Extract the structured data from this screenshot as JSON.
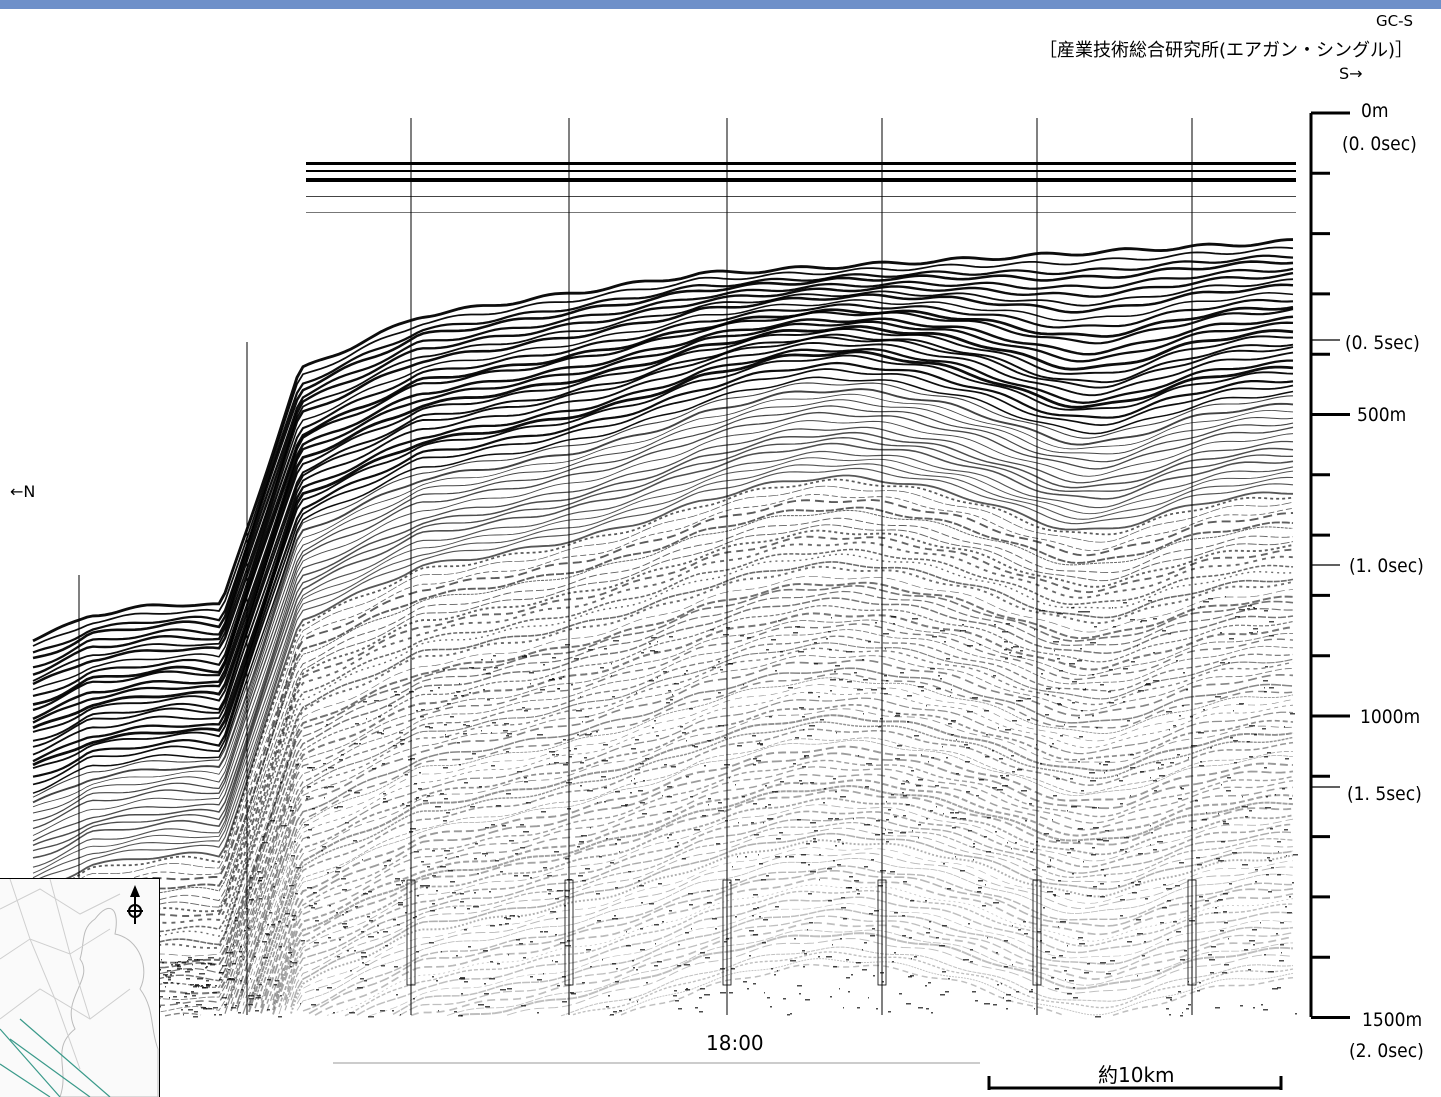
{
  "header": {
    "profile_id": "GC-S",
    "source": "［産業技術総合研究所(エアガン・シングル)］",
    "south_arrow": "S→",
    "north_arrow": "←N"
  },
  "depth_scale": [
    {
      "depth": "0m",
      "time": "(0. 0sec)"
    },
    {
      "depth": "",
      "time": "(0. 5sec)"
    },
    {
      "depth": "500m",
      "time": ""
    },
    {
      "depth": "",
      "time": "(1. 0sec)"
    },
    {
      "depth": "1000m",
      "time": ""
    },
    {
      "depth": "",
      "time": "(1. 5sec)"
    },
    {
      "depth": "1500m",
      "time": "(2. 0sec)"
    }
  ],
  "time_marker": "18:00",
  "scale_bar": "約10km",
  "colors": {
    "header_bar": "#6e90c9",
    "map_track": "#3a9a8a"
  }
}
